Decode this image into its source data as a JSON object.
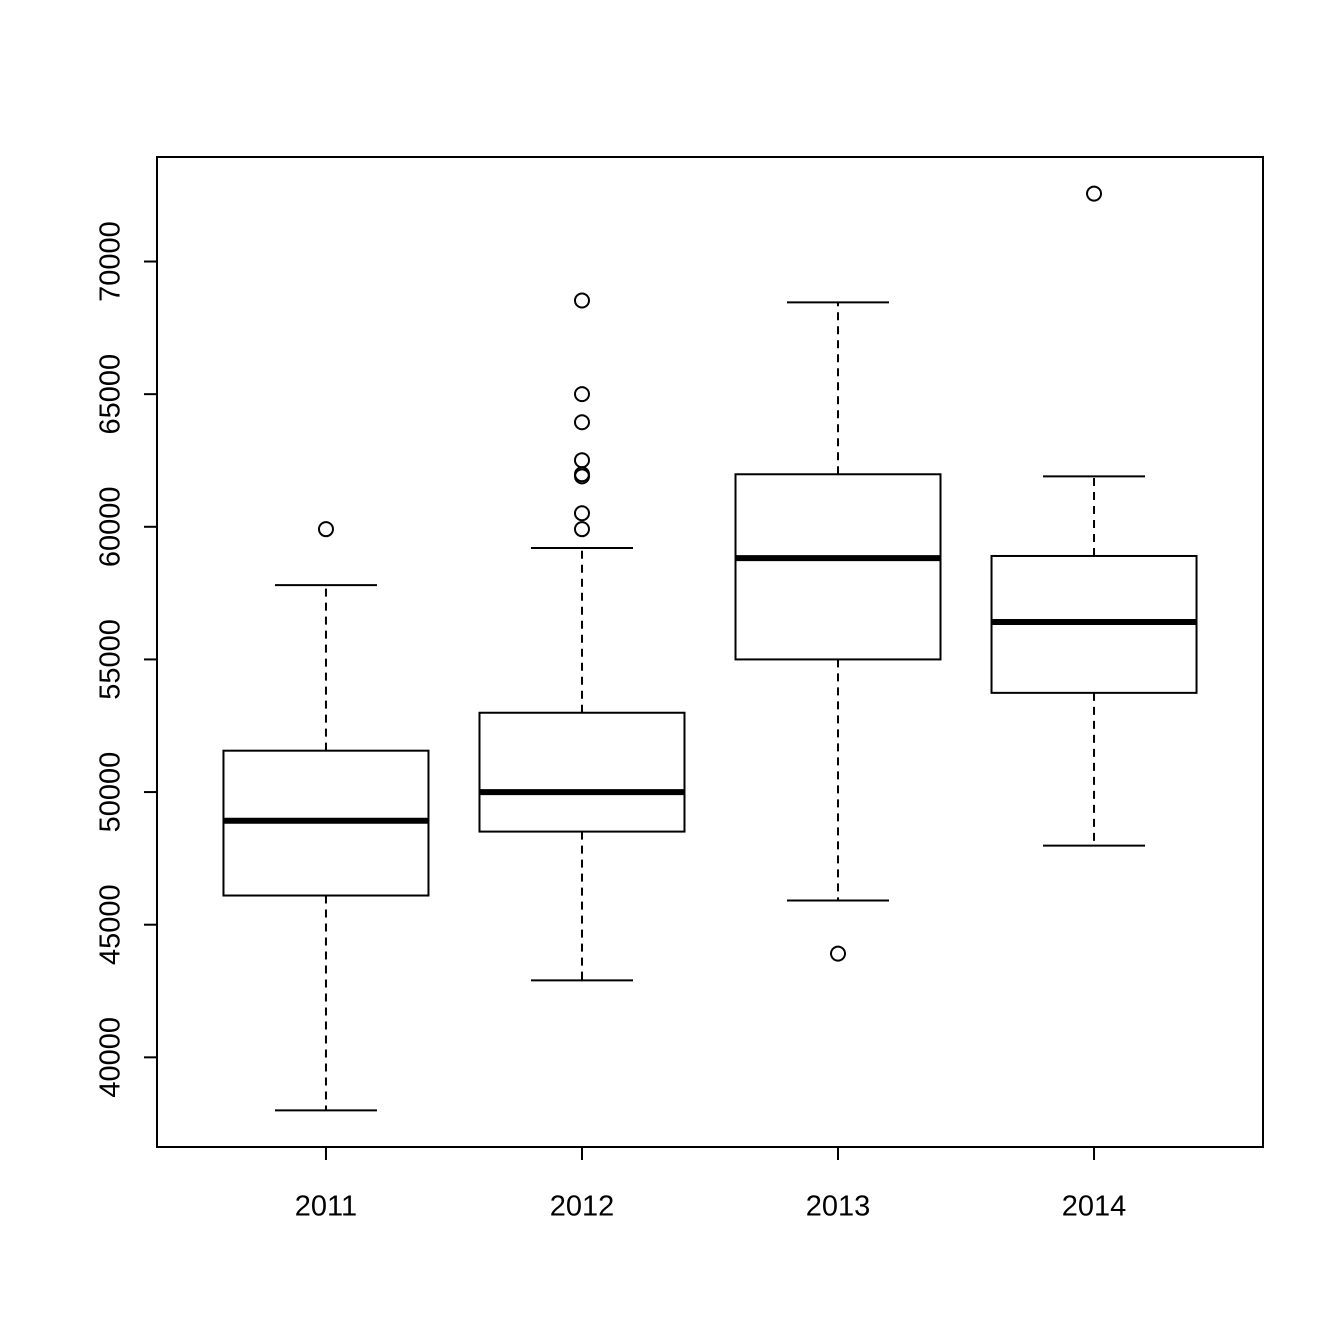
{
  "chart_data": {
    "type": "box",
    "categories": [
      "2011",
      "2012",
      "2013",
      "2014"
    ],
    "whisker_low": [
      38000,
      42900,
      45910,
      47980
    ],
    "q1": [
      46100,
      48510,
      55000,
      53740
    ],
    "median": [
      48920,
      50000,
      58820,
      56410
    ],
    "q3": [
      51560,
      52990,
      61980,
      58900
    ],
    "whisker_high": [
      57800,
      59200,
      68460,
      61900
    ],
    "outliers": [
      [
        59910
      ],
      [
        68530,
        65000,
        63940,
        62510,
        61980,
        61900,
        60510,
        59910
      ],
      [
        43910
      ],
      [
        72560
      ]
    ],
    "ylim": [
      36620,
      73940
    ],
    "yticks": [
      40000,
      45000,
      50000,
      55000,
      60000,
      65000,
      70000
    ],
    "color": "#000000"
  }
}
